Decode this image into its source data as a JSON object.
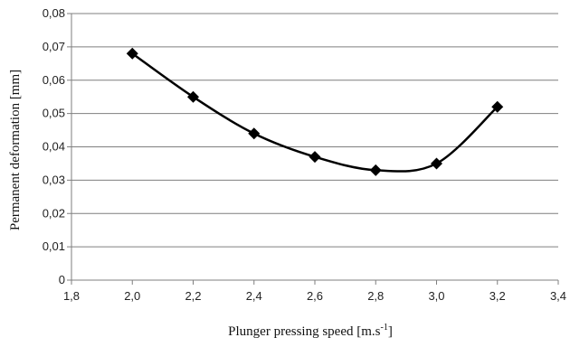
{
  "chart_data": {
    "type": "line",
    "x": [
      2.0,
      2.2,
      2.4,
      2.6,
      2.8,
      3.0,
      3.2
    ],
    "series": [
      {
        "values": [
          0.068,
          0.055,
          0.044,
          0.037,
          0.033,
          0.035,
          0.052
        ]
      }
    ],
    "xlim": [
      1.8,
      3.4
    ],
    "ylim": [
      0,
      0.08
    ],
    "xticks": [
      1.8,
      2.0,
      2.2,
      2.4,
      2.6,
      2.8,
      3.0,
      3.2,
      3.4
    ],
    "yticks": [
      0,
      0.01,
      0.02,
      0.03,
      0.04,
      0.05,
      0.06,
      0.07,
      0.08
    ],
    "xtick_labels": [
      "1,8",
      "2,0",
      "2,2",
      "2,4",
      "2,6",
      "2,8",
      "3,0",
      "3,2",
      "3,4"
    ],
    "ytick_labels": [
      "0",
      "0,01",
      "0,02",
      "0,03",
      "0,04",
      "0,05",
      "0,06",
      "0,07",
      "0,08"
    ],
    "xlabel": "Plunger pressing speed  [m.s",
    "xlabel_sup": "-1",
    "xlabel_end": "]",
    "ylabel": "Permanent deformation [mm]",
    "grid": "horizontal",
    "marker": "diamond",
    "line_style": "smooth",
    "colors": {
      "line": "#000000",
      "grid": "#7f7f7f",
      "axis": "#7f7f7f"
    }
  }
}
